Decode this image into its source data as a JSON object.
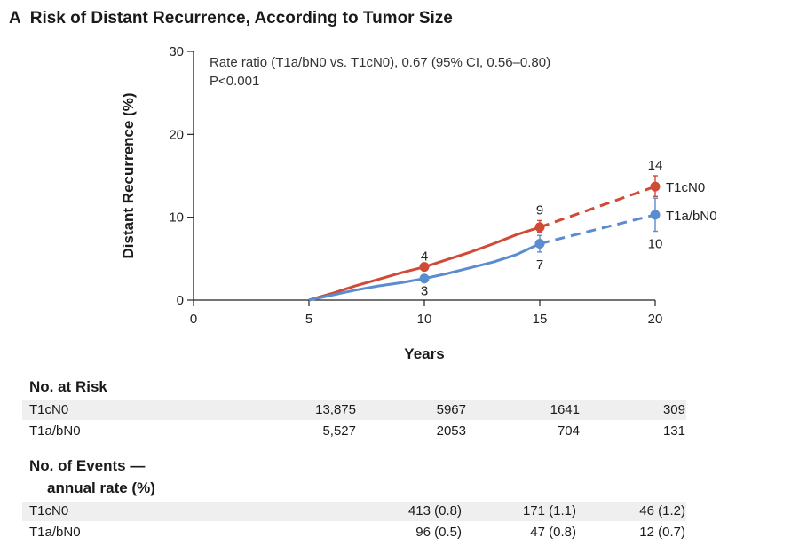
{
  "panel": {
    "letter": "A",
    "title": "Risk of Distant Recurrence, According to Tumor Size"
  },
  "chart_data": {
    "type": "line",
    "xlabel": "Years",
    "ylabel": "Distant Recurrence (%)",
    "xlim": [
      0,
      20
    ],
    "ylim": [
      0,
      30
    ],
    "xticks": [
      0,
      5,
      10,
      15,
      20
    ],
    "yticks": [
      0,
      10,
      20,
      30
    ],
    "annotation": [
      "Rate ratio (T1a/bN0 vs. T1cN0), 0.67 (95% CI, 0.56–0.80)",
      "P<0.001"
    ],
    "series": [
      {
        "name": "T1cN0",
        "color": "#d04a35",
        "solid": [
          [
            5,
            0
          ],
          [
            6,
            0.8
          ],
          [
            7,
            1.7
          ],
          [
            8,
            2.5
          ],
          [
            9,
            3.3
          ],
          [
            10,
            4.0
          ],
          [
            11,
            4.9
          ],
          [
            12,
            5.8
          ],
          [
            13,
            6.8
          ],
          [
            14,
            7.9
          ],
          [
            15,
            8.8
          ]
        ],
        "dashed": [
          [
            15,
            8.8
          ],
          [
            20,
            13.7
          ]
        ],
        "markers": [
          {
            "x": 10,
            "y": 4.0,
            "label": "4",
            "pos": "above"
          },
          {
            "x": 15,
            "y": 8.8,
            "label": "9",
            "pos": "above",
            "err": [
              8.2,
              9.6
            ]
          },
          {
            "x": 20,
            "y": 13.7,
            "label": "14",
            "pos": "above",
            "err": [
              12.5,
              15.0
            ]
          }
        ],
        "end_label": "T1cN0"
      },
      {
        "name": "T1a/bN0",
        "color": "#5b8ccf",
        "solid": [
          [
            5,
            0
          ],
          [
            6,
            0.6
          ],
          [
            7,
            1.2
          ],
          [
            8,
            1.7
          ],
          [
            9,
            2.1
          ],
          [
            10,
            2.6
          ],
          [
            11,
            3.2
          ],
          [
            12,
            3.9
          ],
          [
            13,
            4.6
          ],
          [
            14,
            5.5
          ],
          [
            15,
            6.8
          ]
        ],
        "dashed": [
          [
            15,
            6.8
          ],
          [
            20,
            10.3
          ]
        ],
        "markers": [
          {
            "x": 10,
            "y": 2.6,
            "label": "3",
            "pos": "below"
          },
          {
            "x": 15,
            "y": 6.8,
            "label": "7",
            "pos": "below",
            "err": [
              5.8,
              7.8
            ]
          },
          {
            "x": 20,
            "y": 10.3,
            "label": "10",
            "pos": "below",
            "err": [
              8.3,
              12.3
            ]
          }
        ],
        "end_label": "T1a/bN0"
      }
    ]
  },
  "risk_table": {
    "title": "No. at Risk",
    "rows": [
      {
        "label": "T1cN0",
        "values": [
          "13,875",
          "5967",
          "1641",
          "309"
        ]
      },
      {
        "label": "T1a/bN0",
        "values": [
          "5,527",
          "2053",
          "704",
          "131"
        ]
      }
    ]
  },
  "events_table": {
    "title_line1": "No. of Events —",
    "title_line2": "annual rate (%)",
    "rows": [
      {
        "label": "T1cN0",
        "values": [
          "413 (0.8)",
          "171 (1.1)",
          "46 (1.2)"
        ]
      },
      {
        "label": "T1a/bN0",
        "values": [
          "96 (0.5)",
          "47 (0.8)",
          "12 (0.7)"
        ]
      }
    ]
  }
}
